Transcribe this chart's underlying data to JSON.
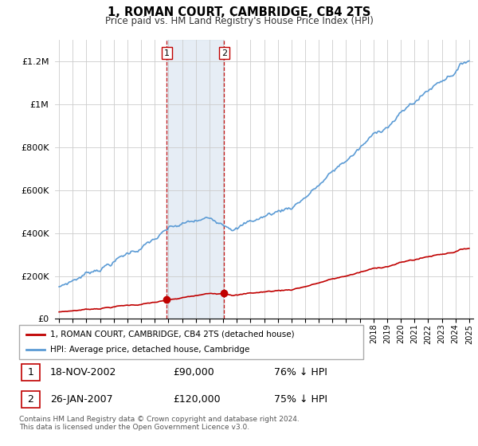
{
  "title": "1, ROMAN COURT, CAMBRIDGE, CB4 2TS",
  "subtitle": "Price paid vs. HM Land Registry's House Price Index (HPI)",
  "ylim": [
    0,
    1300000
  ],
  "yticks": [
    0,
    200000,
    400000,
    600000,
    800000,
    1000000,
    1200000
  ],
  "ytick_labels": [
    "£0",
    "£200K",
    "£400K",
    "£600K",
    "£800K",
    "£1M",
    "£1.2M"
  ],
  "hpi_color": "#5b9bd5",
  "price_color": "#c00000",
  "sale1_date": 2002.88,
  "sale1_price": 90000,
  "sale1_label": "1",
  "sale2_date": 2007.07,
  "sale2_price": 120000,
  "sale2_label": "2",
  "shade_color": "#dce6f1",
  "shade_alpha": 0.5,
  "legend1_text": "1, ROMAN COURT, CAMBRIDGE, CB4 2TS (detached house)",
  "legend2_text": "HPI: Average price, detached house, Cambridge",
  "row1_label": "1",
  "row1_date": "18-NOV-2002",
  "row1_price": "£90,000",
  "row1_hpi": "76% ↓ HPI",
  "row2_label": "2",
  "row2_date": "26-JAN-2007",
  "row2_price": "£120,000",
  "row2_hpi": "75% ↓ HPI",
  "footer": "Contains HM Land Registry data © Crown copyright and database right 2024.\nThis data is licensed under the Open Government Licence v3.0.",
  "xstart": 1995,
  "xend": 2025
}
